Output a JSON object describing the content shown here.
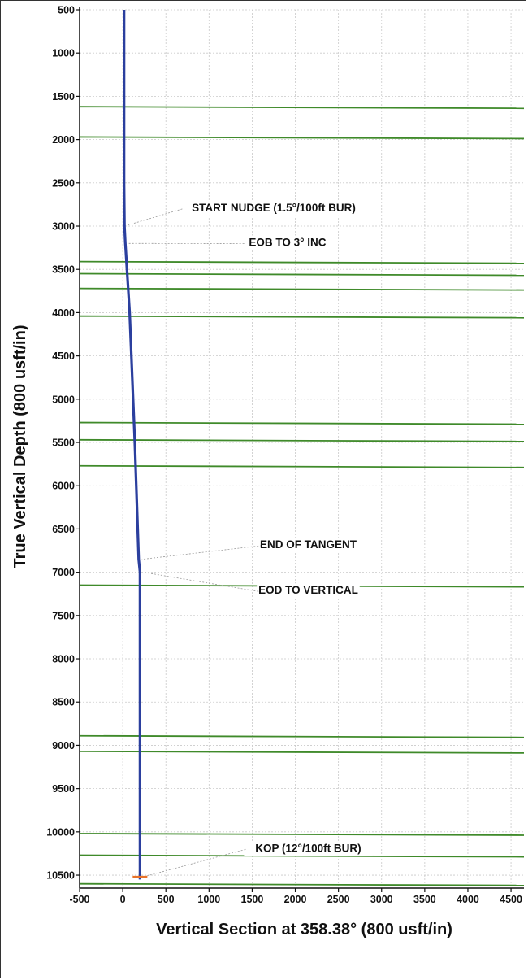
{
  "chart_data": {
    "type": "line",
    "title": "",
    "xlabel": "Vertical Section at 358.38° (800 usft/in)",
    "ylabel": "True Vertical Depth (800 usft/in)",
    "xlim": [
      -500,
      4650
    ],
    "ylim": [
      500,
      10650
    ],
    "y_inverted": true,
    "grid": true,
    "x_ticks": [
      -500,
      0,
      500,
      1000,
      1500,
      2000,
      2500,
      3000,
      3500,
      4000,
      4500
    ],
    "y_ticks": [
      500,
      1000,
      1500,
      2000,
      2500,
      3000,
      3500,
      4000,
      4500,
      5000,
      5500,
      6000,
      6500,
      7000,
      7500,
      8000,
      8500,
      9000,
      9500,
      10000,
      10500
    ],
    "series": [
      {
        "color": "#2b3f9e",
        "x": [
          15,
          15,
          20,
          30,
          80,
          140,
          185,
          200,
          200,
          200
        ],
        "y": [
          500,
          2500,
          3000,
          3200,
          4000,
          5500,
          6850,
          7000,
          10000,
          10550
        ]
      }
    ],
    "formation_lines": {
      "color": "#3f8a2a",
      "tvd": [
        1620,
        1970,
        3410,
        3550,
        3720,
        4040,
        5270,
        5470,
        5770,
        7150,
        8890,
        9070,
        10020,
        10270,
        10600
      ]
    },
    "annotations": [
      {
        "text": "START NUDGE (1.5°/100ft BUR)",
        "x": 1750,
        "y": 2830,
        "point_x": 15,
        "point_y": 2990
      },
      {
        "text": "EOB TO 3° INC",
        "x": 1910,
        "y": 3230,
        "point_x": 25,
        "point_y": 3200
      },
      {
        "text": "END OF TANGENT",
        "x": 2150,
        "y": 6720,
        "point_x": 185,
        "point_y": 6850
      },
      {
        "text": "EOD TO VERTICAL",
        "x": 2150,
        "y": 7250,
        "point_x": 200,
        "point_y": 7000
      },
      {
        "text": "KOP (12°/100ft BUR)",
        "x": 2150,
        "y": 10230,
        "point_x": 200,
        "point_y": 10520
      }
    ],
    "marker": {
      "x": 200,
      "y": 10520,
      "color": "#e8732a"
    }
  }
}
